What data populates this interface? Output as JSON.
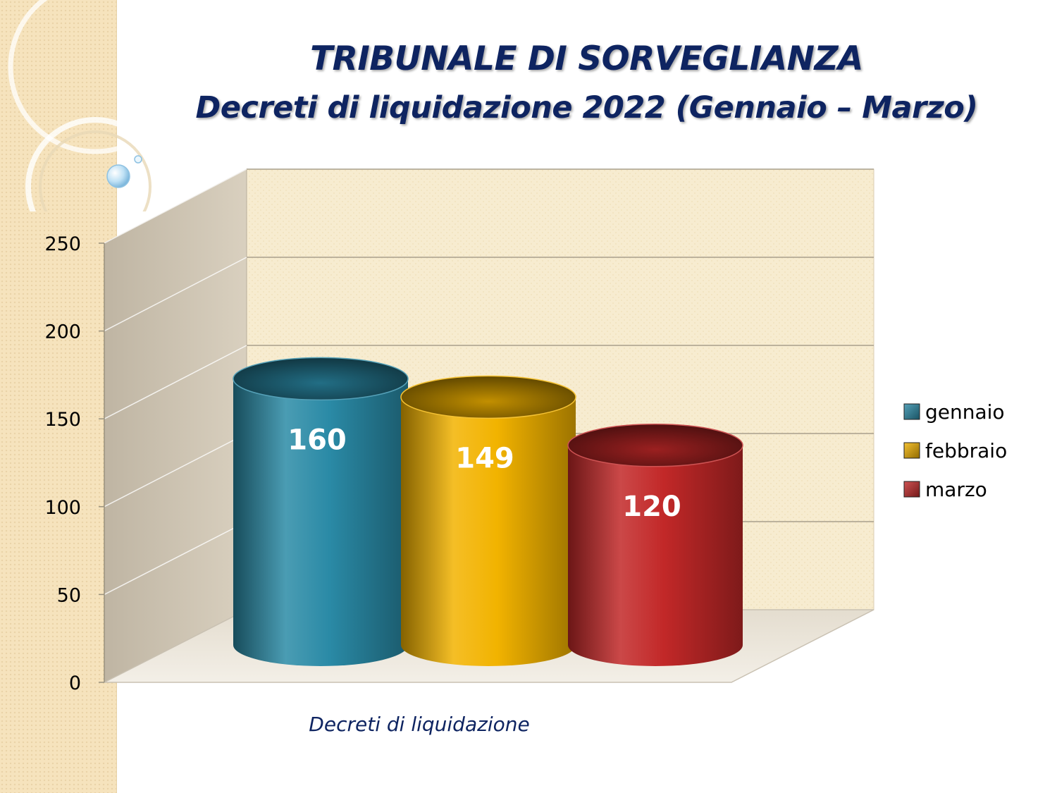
{
  "slide": {
    "title_line1": "TRIBUNALE DI SORVEGLIANZA",
    "title_line2": "Decreti di liquidazione 2022 (Gennaio – Marzo)"
  },
  "chart_data": {
    "type": "bar",
    "style": "3d-cylinder",
    "categories": [
      "Decreti di liquidazione"
    ],
    "series": [
      {
        "name": "gennaio",
        "values": [
          160
        ],
        "color": "#2a8aa6"
      },
      {
        "name": "febbraio",
        "values": [
          149
        ],
        "color": "#f2b300"
      },
      {
        "name": "marzo",
        "values": [
          120
        ],
        "color": "#c22828"
      }
    ],
    "ylim": [
      0,
      250
    ],
    "yticks": [
      0,
      50,
      100,
      150,
      200,
      250
    ],
    "grid": true,
    "legend_position": "right",
    "data_labels": true,
    "wall_color": "#f7ecd0"
  }
}
